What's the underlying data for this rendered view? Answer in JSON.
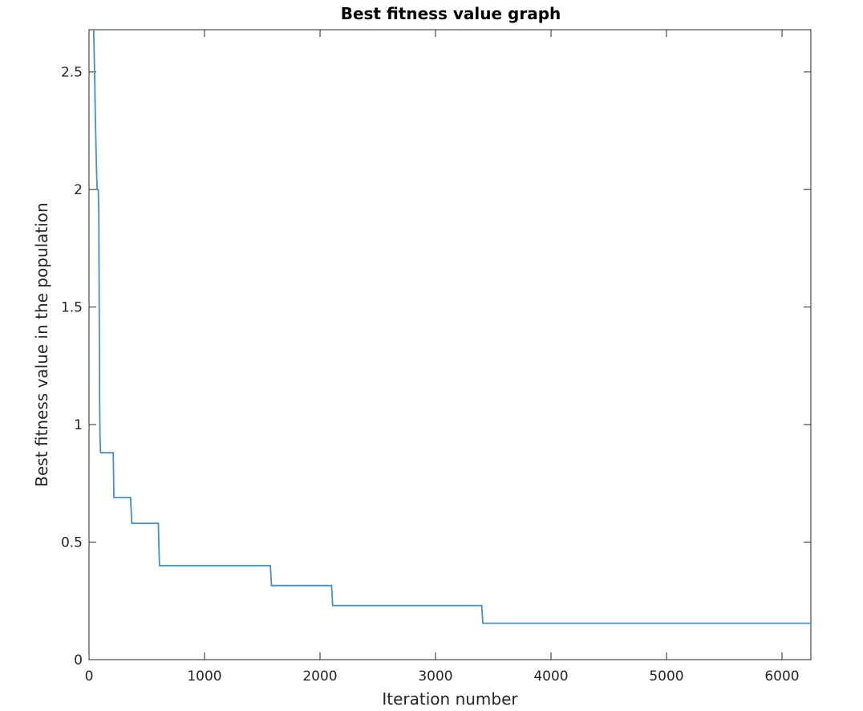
{
  "chart_data": {
    "type": "line",
    "title": "Best fitness value graph",
    "xlabel": "Iteration number",
    "ylabel": "Best fitness value in the population",
    "xlim": [
      0,
      6250
    ],
    "ylim": [
      0,
      2.68
    ],
    "x_ticks": [
      0,
      1000,
      2000,
      3000,
      4000,
      5000,
      6000
    ],
    "y_ticks": [
      0,
      0.5,
      1,
      1.5,
      2,
      2.5
    ],
    "x_tick_labels": [
      "0",
      "1000",
      "2000",
      "3000",
      "4000",
      "5000",
      "6000"
    ],
    "y_tick_labels": [
      "0",
      "0.5",
      "1",
      "1.5",
      "2",
      "2.5"
    ],
    "grid": false,
    "line_color": "#4a8fc4",
    "series": [
      {
        "x": [
          40,
          50,
          55,
          60,
          64,
          70,
          80,
          85,
          88,
          90,
          92,
          95,
          100,
          210,
          215,
          360,
          370,
          600,
          610,
          1570,
          1580,
          2100,
          2110,
          3400,
          3410,
          6250
        ],
        "y": [
          2.68,
          2.45,
          2.3,
          2.2,
          2.1,
          2.0,
          2.0,
          1.9,
          1.5,
          1.3,
          1.1,
          0.95,
          0.88,
          0.88,
          0.69,
          0.69,
          0.58,
          0.58,
          0.4,
          0.4,
          0.315,
          0.315,
          0.23,
          0.23,
          0.155,
          0.155
        ]
      }
    ]
  }
}
